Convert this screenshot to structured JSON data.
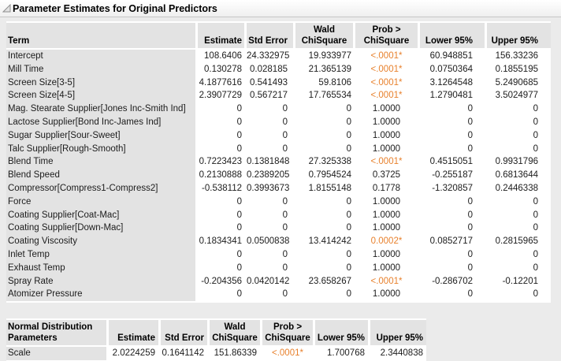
{
  "report": {
    "title": "Parameter Estimates for Original Predictors",
    "disclosure_icon": "open-disclosure-triangle"
  },
  "colors": {
    "significant_value": "#e8812d",
    "header_cell_bg": "#e3e3e3",
    "page_bg": "#ebebeb"
  },
  "main_table": {
    "headers": [
      "Term",
      "Estimate",
      "Std Error",
      "Wald\nChiSquare",
      "Prob >\nChiSquare",
      "Lower 95%",
      "Upper 95%"
    ],
    "rows": [
      [
        "Intercept",
        "108.6406",
        "24.332975",
        "19.933977",
        "<.0001*",
        "60.948851",
        "156.33236"
      ],
      [
        "Mill Time",
        "0.130278",
        "0.028185",
        "21.365139",
        "<.0001*",
        "0.0750364",
        "0.1855195"
      ],
      [
        "Screen Size[3-5]",
        "4.1877616",
        "0.541493",
        "59.8106",
        "<.0001*",
        "3.1264548",
        "5.2490685"
      ],
      [
        "Screen Size[4-5]",
        "2.3907729",
        "0.567217",
        "17.765534",
        "<.0001*",
        "1.2790481",
        "3.5024977"
      ],
      [
        "Mag. Stearate Supplier[Jones Inc-Smith Ind]",
        "0",
        "0",
        "0",
        "1.0000",
        "0",
        "0"
      ],
      [
        "Lactose Supplier[Bond Inc-James Ind]",
        "0",
        "0",
        "0",
        "1.0000",
        "0",
        "0"
      ],
      [
        "Sugar Supplier[Sour-Sweet]",
        "0",
        "0",
        "0",
        "1.0000",
        "0",
        "0"
      ],
      [
        "Talc Supplier[Rough-Smooth]",
        "0",
        "0",
        "0",
        "1.0000",
        "0",
        "0"
      ],
      [
        "Blend Time",
        "0.7223423",
        "0.1381848",
        "27.325338",
        "<.0001*",
        "0.4515051",
        "0.9931796"
      ],
      [
        "Blend Speed",
        "0.2130888",
        "0.2389205",
        "0.7954524",
        "0.3725",
        "-0.255187",
        "0.6813644"
      ],
      [
        "Compressor[Compress1-Compress2]",
        "-0.538112",
        "0.3993673",
        "1.8155148",
        "0.1778",
        "-1.320857",
        "0.2446338"
      ],
      [
        "Force",
        "0",
        "0",
        "0",
        "1.0000",
        "0",
        "0"
      ],
      [
        "Coating Supplier[Coat-Mac]",
        "0",
        "0",
        "0",
        "1.0000",
        "0",
        "0"
      ],
      [
        "Coating Supplier[Down-Mac]",
        "0",
        "0",
        "0",
        "1.0000",
        "0",
        "0"
      ],
      [
        "Coating Viscosity",
        "0.1834341",
        "0.0500838",
        "13.414242",
        "0.0002*",
        "0.0852717",
        "0.2815965"
      ],
      [
        "Inlet Temp",
        "0",
        "0",
        "0",
        "1.0000",
        "0",
        "0"
      ],
      [
        "Exhaust Temp",
        "0",
        "0",
        "0",
        "1.0000",
        "0",
        "0"
      ],
      [
        "Spray Rate",
        "-0.204356",
        "0.0420142",
        "23.658267",
        "<.0001*",
        "-0.286702",
        "-0.12201"
      ],
      [
        "Atomizer Pressure",
        "0",
        "0",
        "0",
        "1.0000",
        "0",
        "0"
      ]
    ]
  },
  "scale_table": {
    "headers": [
      "Normal Distribution\nParameters",
      "Estimate",
      "Std Error",
      "Wald\nChiSquare",
      "Prob >\nChiSquare",
      "Lower 95%",
      "Upper 95%"
    ],
    "rows": [
      [
        "Scale",
        "2.0224259",
        "0.1641142",
        "151.86339",
        "<.0001*",
        "1.700768",
        "2.3440838"
      ]
    ]
  }
}
